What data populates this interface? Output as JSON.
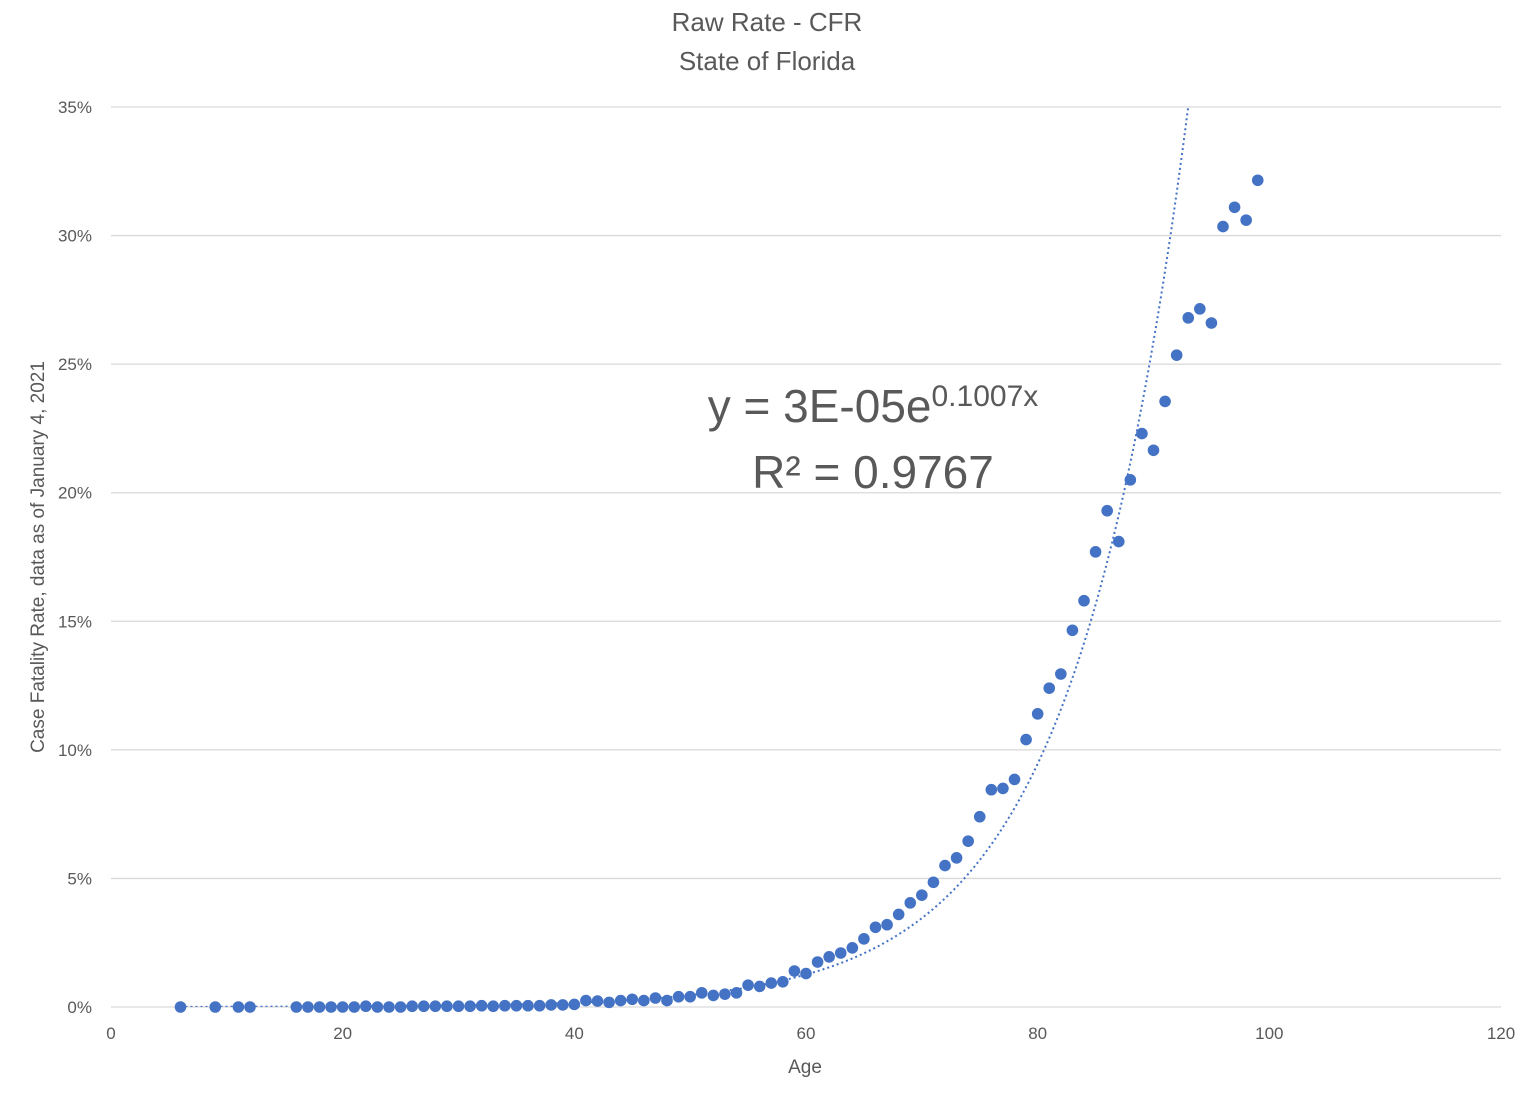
{
  "chart_data": {
    "type": "scatter",
    "title": "Raw Rate - CFR",
    "subtitle": "State of Florida",
    "xlabel": "Age",
    "ylabel": "Case Fatality Rate, data as of January 4, 2021",
    "xlim": [
      0,
      120
    ],
    "ylim": [
      0,
      0.35
    ],
    "x_ticks": [
      0,
      20,
      40,
      60,
      80,
      100,
      120
    ],
    "x_tick_labels": [
      "0",
      "20",
      "40",
      "60",
      "80",
      "100",
      "120"
    ],
    "y_ticks": [
      0,
      0.05,
      0.1,
      0.15,
      0.2,
      0.25,
      0.3,
      0.35
    ],
    "y_tick_labels": [
      "0%",
      "5%",
      "10%",
      "15%",
      "20%",
      "25%",
      "30%",
      "35%"
    ],
    "grid": "horizontal",
    "legend": "none",
    "series": [
      {
        "color": "#4472C4",
        "marker": "circle",
        "points": [
          [
            6,
            0.0
          ],
          [
            9,
            0.0
          ],
          [
            11,
            0.0
          ],
          [
            12,
            0.0
          ],
          [
            16,
            0.0
          ],
          [
            17,
            0.0
          ],
          [
            18,
            0.0
          ],
          [
            19,
            0.0
          ],
          [
            20,
            0.0
          ],
          [
            21,
            0.0
          ],
          [
            22,
            0.0003
          ],
          [
            23,
            0.0
          ],
          [
            24,
            0.0
          ],
          [
            25,
            0.0
          ],
          [
            26,
            0.0003
          ],
          [
            27,
            0.0003
          ],
          [
            28,
            0.0003
          ],
          [
            29,
            0.0003
          ],
          [
            30,
            0.0003
          ],
          [
            31,
            0.0003
          ],
          [
            32,
            0.0005
          ],
          [
            33,
            0.0003
          ],
          [
            34,
            0.0005
          ],
          [
            35,
            0.0005
          ],
          [
            36,
            0.0005
          ],
          [
            37,
            0.0005
          ],
          [
            38,
            0.0008
          ],
          [
            39,
            0.0008
          ],
          [
            40,
            0.001
          ],
          [
            41,
            0.0025
          ],
          [
            42,
            0.0023
          ],
          [
            43,
            0.0018
          ],
          [
            44,
            0.0025
          ],
          [
            45,
            0.003
          ],
          [
            46,
            0.0025
          ],
          [
            47,
            0.0035
          ],
          [
            48,
            0.0025
          ],
          [
            49,
            0.004
          ],
          [
            50,
            0.004
          ],
          [
            51,
            0.0055
          ],
          [
            52,
            0.0045
          ],
          [
            53,
            0.005
          ],
          [
            54,
            0.0055
          ],
          [
            55,
            0.0085
          ],
          [
            56,
            0.008
          ],
          [
            57,
            0.0093
          ],
          [
            58,
            0.0098
          ],
          [
            59,
            0.014
          ],
          [
            60,
            0.013
          ],
          [
            61,
            0.0175
          ],
          [
            62,
            0.0195
          ],
          [
            63,
            0.021
          ],
          [
            64,
            0.023
          ],
          [
            65,
            0.0265
          ],
          [
            66,
            0.031
          ],
          [
            67,
            0.032
          ],
          [
            68,
            0.036
          ],
          [
            69,
            0.0405
          ],
          [
            70,
            0.0435
          ],
          [
            71,
            0.0485
          ],
          [
            72,
            0.055
          ],
          [
            73,
            0.058
          ],
          [
            74,
            0.0645
          ],
          [
            75,
            0.074
          ],
          [
            76,
            0.0845
          ],
          [
            77,
            0.085
          ],
          [
            78,
            0.0885
          ],
          [
            79,
            0.104
          ],
          [
            80,
            0.114
          ],
          [
            81,
            0.124
          ],
          [
            82,
            0.1295
          ],
          [
            83,
            0.1465
          ],
          [
            84,
            0.158
          ],
          [
            85,
            0.177
          ],
          [
            86,
            0.193
          ],
          [
            87,
            0.181
          ],
          [
            88,
            0.205
          ],
          [
            89,
            0.223
          ],
          [
            90,
            0.2165
          ],
          [
            91,
            0.2355
          ],
          [
            92,
            0.2535
          ],
          [
            93,
            0.268
          ],
          [
            94,
            0.2715
          ],
          [
            95,
            0.266
          ],
          [
            96,
            0.3035
          ],
          [
            97,
            0.311
          ],
          [
            98,
            0.306
          ],
          [
            99,
            0.3215
          ]
        ]
      }
    ],
    "trendline": {
      "type": "exponential",
      "coefficient": 3e-05,
      "exponent": 0.1007,
      "style": "dotted",
      "color": "#4472C4",
      "x_range": [
        6,
        120
      ]
    },
    "annotation": {
      "equation_prefix": "y = 3E-05e",
      "equation_exponent": "0.1007x",
      "r_squared": "R² = 0.9767"
    }
  }
}
